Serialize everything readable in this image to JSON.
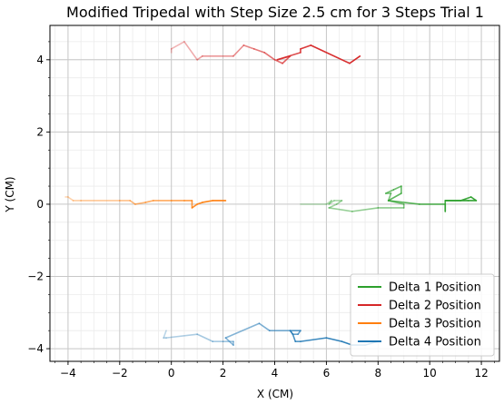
{
  "chart_data": {
    "type": "line",
    "title": "Modified Tripedal with Step Size 2.5 cm for 3 Steps Trial 1",
    "xlabel": "X (CM)",
    "ylabel": "Y (CM)",
    "xlim": [
      -4.7,
      12.7
    ],
    "ylim": [
      -4.35,
      4.95
    ],
    "xticks": [
      -4,
      -2,
      0,
      2,
      4,
      6,
      8,
      10,
      12
    ],
    "yticks": [
      -4,
      -2,
      0,
      2,
      4
    ],
    "grid": true,
    "minor_grid": true,
    "legend_position": "lower-right",
    "series": [
      {
        "name": "Delta 1 Position",
        "color": "#2ca02c",
        "x": [
          5.0,
          6.0,
          6.2,
          6.1,
          6.3,
          6.6,
          6.4,
          6.1,
          7.0,
          8.0,
          9.0,
          9.0,
          8.4,
          8.5,
          8.3,
          8.6,
          8.9,
          8.9,
          8.4,
          9.6,
          10.6,
          10.6,
          10.6,
          11.2,
          11.6,
          11.8,
          11.5,
          10.6
        ],
        "y": [
          0.0,
          0.0,
          0.1,
          0.0,
          0.1,
          0.1,
          0.0,
          -0.1,
          -0.2,
          -0.1,
          -0.1,
          0.0,
          0.1,
          0.3,
          0.3,
          0.4,
          0.5,
          0.3,
          0.1,
          0.0,
          0.0,
          -0.2,
          0.1,
          0.1,
          0.2,
          0.1,
          0.1,
          0.1
        ]
      },
      {
        "name": "Delta 2 Position",
        "color": "#d62728",
        "x": [
          0.0,
          0.0,
          0.5,
          1.0,
          1.2,
          2.4,
          2.8,
          3.2,
          3.6,
          4.0,
          4.3,
          4.6,
          4.1,
          5.0,
          5.0,
          5.4,
          6.9,
          7.3
        ],
        "y": [
          4.2,
          4.3,
          4.5,
          4.0,
          4.1,
          4.1,
          4.4,
          4.3,
          4.2,
          4.0,
          3.9,
          4.1,
          4.0,
          4.2,
          4.3,
          4.4,
          3.9,
          4.1
        ]
      },
      {
        "name": "Delta 3 Position",
        "color": "#ff7f0e",
        "x": [
          -4.1,
          -4.0,
          -3.8,
          -3.5,
          -2.0,
          -1.6,
          -1.4,
          -1.0,
          -0.7,
          0.0,
          0.5,
          0.8,
          0.8,
          1.0,
          1.2,
          1.6,
          2.1
        ],
        "y": [
          0.2,
          0.2,
          0.1,
          0.1,
          0.1,
          0.1,
          0.0,
          0.05,
          0.1,
          0.1,
          0.1,
          0.1,
          -0.1,
          0.0,
          0.05,
          0.1,
          0.1
        ]
      },
      {
        "name": "Delta 4 Position",
        "color": "#1f77b4",
        "x": [
          -0.2,
          -0.3,
          -0.2,
          1.0,
          1.6,
          2.0,
          2.4,
          2.4,
          2.1,
          3.4,
          3.8,
          4.6,
          4.7,
          4.9,
          5.0,
          4.6,
          4.7,
          4.8,
          5.0,
          6.0,
          6.6,
          7.0,
          7.5,
          8.0
        ],
        "y": [
          -3.5,
          -3.7,
          -3.7,
          -3.6,
          -3.8,
          -3.8,
          -3.8,
          -3.9,
          -3.7,
          -3.3,
          -3.5,
          -3.5,
          -3.6,
          -3.6,
          -3.5,
          -3.5,
          -3.6,
          -3.8,
          -3.8,
          -3.7,
          -3.8,
          -3.9,
          -3.9,
          -3.8
        ]
      }
    ]
  }
}
